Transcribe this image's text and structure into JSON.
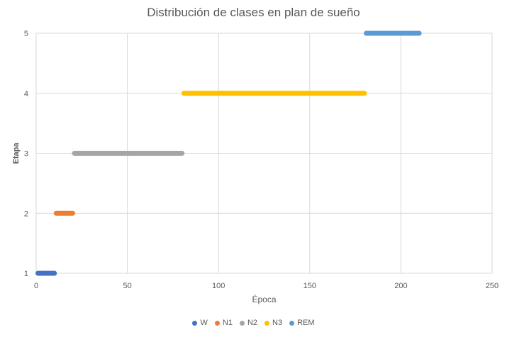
{
  "chart_data": {
    "type": "scatter",
    "title": "Distribución de clases en plan de sueño",
    "xlabel": "Época",
    "ylabel": "Etapa",
    "xlim": [
      0,
      250
    ],
    "ylim": [
      1,
      5
    ],
    "xticks": [
      0,
      50,
      100,
      150,
      200,
      250
    ],
    "yticks": [
      1,
      2,
      3,
      4,
      5
    ],
    "grid": true,
    "legend_position": "bottom",
    "series": [
      {
        "name": "W",
        "color": "#4472C4",
        "y": 1,
        "x_start": 1,
        "x_end": 10
      },
      {
        "name": "N1",
        "color": "#ED7D31",
        "y": 2,
        "x_start": 11,
        "x_end": 20
      },
      {
        "name": "N2",
        "color": "#A5A5A5",
        "y": 3,
        "x_start": 21,
        "x_end": 80
      },
      {
        "name": "N3",
        "color": "#FFC000",
        "y": 4,
        "x_start": 81,
        "x_end": 180
      },
      {
        "name": "REM",
        "color": "#5B9BD5",
        "y": 5,
        "x_start": 181,
        "x_end": 210
      }
    ]
  }
}
